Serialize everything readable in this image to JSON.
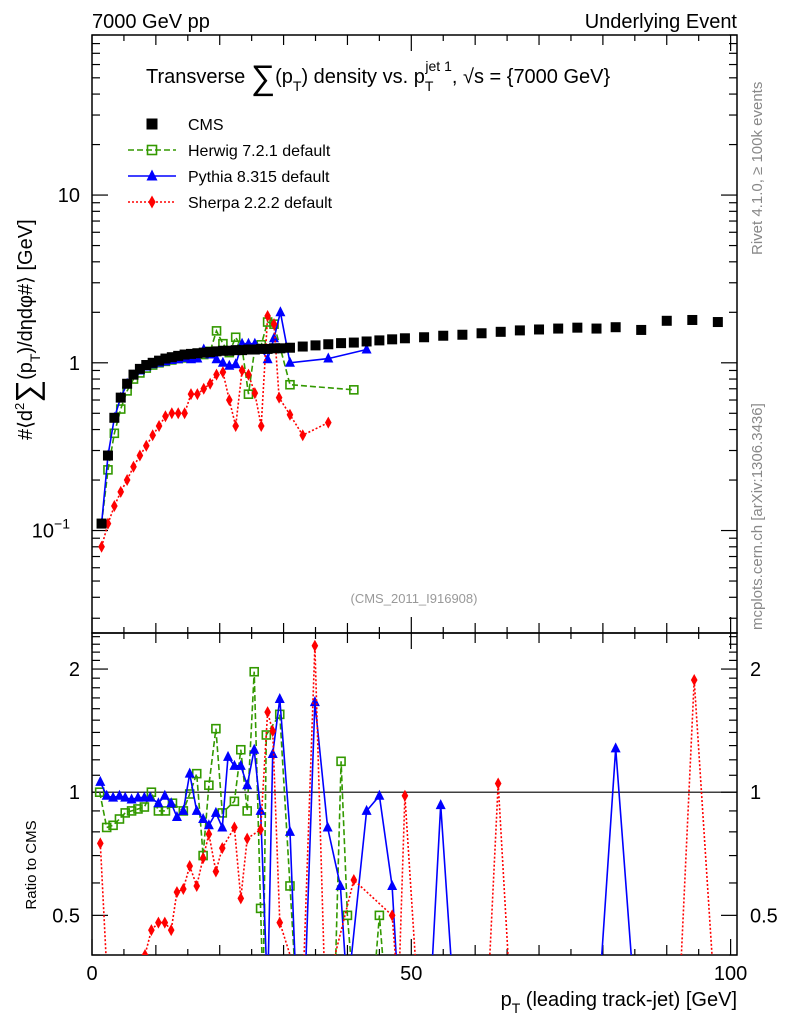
{
  "header": {
    "left": "7000 GeV pp",
    "right": "Underlying Event"
  },
  "side_labels": {
    "rivet": "Rivet 4.1.0, ≥ 100k events",
    "mcplots": "mcplots.cern.ch [arXiv:1306.3436]"
  },
  "analysis_id": "(CMS_2011_I916908)",
  "chart_data": [
    {
      "type": "line",
      "title_parts": [
        "Transverse ",
        "∑",
        "(p",
        "T",
        ") density vs. p",
        "T",
        "jet 1",
        ", √s = {7000 GeV}"
      ],
      "ylabel_parts": [
        "#⟨d",
        "2",
        "∑",
        "(p",
        "T",
        ")/dηdφ#⟩ [GeV]"
      ],
      "xscale": "linear",
      "yscale": "log",
      "xlim": [
        0,
        101
      ],
      "ylim": [
        0.0245,
        90
      ],
      "y_ticks": [
        {
          "v": 10,
          "label": "10"
        },
        {
          "v": 1,
          "label": "1"
        },
        {
          "v": 0.1,
          "label": "10",
          "sup": "−1"
        }
      ],
      "legend_position": "top-left",
      "series": [
        {
          "name": "CMS",
          "color": "#000000",
          "marker": "filled-square",
          "line": "none",
          "x": [
            1.5,
            2.5,
            3.5,
            4.5,
            5.5,
            6.5,
            7.5,
            8.5,
            9.5,
            10.5,
            11.5,
            12.5,
            13.5,
            14.5,
            15.5,
            16.5,
            17.5,
            18.5,
            19.5,
            20.5,
            21.5,
            22.5,
            23.5,
            24.5,
            25.5,
            26.5,
            27.5,
            28.5,
            29.5,
            31,
            33,
            35,
            37,
            39,
            41,
            43,
            45,
            47,
            49,
            52,
            55,
            58,
            61,
            64,
            67,
            70,
            73,
            76,
            79,
            82,
            86,
            90,
            94,
            98
          ],
          "y": [
            0.11,
            0.28,
            0.47,
            0.62,
            0.75,
            0.85,
            0.92,
            0.97,
            1.0,
            1.03,
            1.06,
            1.08,
            1.1,
            1.12,
            1.13,
            1.14,
            1.15,
            1.16,
            1.17,
            1.18,
            1.18,
            1.19,
            1.19,
            1.2,
            1.2,
            1.21,
            1.21,
            1.22,
            1.22,
            1.23,
            1.25,
            1.27,
            1.29,
            1.31,
            1.32,
            1.34,
            1.36,
            1.38,
            1.4,
            1.42,
            1.45,
            1.47,
            1.5,
            1.53,
            1.56,
            1.58,
            1.6,
            1.62,
            1.6,
            1.63,
            1.57,
            1.78,
            1.8,
            1.75
          ]
        },
        {
          "name": "Herwig 7.2.1 default",
          "color": "#339900",
          "marker": "open-square",
          "line": "dashed",
          "x": [
            1.5,
            2.5,
            3.5,
            4.5,
            5.5,
            6.5,
            7.5,
            8.5,
            9.5,
            10.5,
            11.5,
            12.5,
            13.5,
            14.5,
            15.5,
            16.5,
            17.5,
            18.5,
            19.5,
            20.5,
            21.5,
            22.5,
            23.5,
            24.5,
            25.5,
            26.5,
            27.5,
            28.5,
            31,
            41
          ],
          "y": [
            0.11,
            0.23,
            0.38,
            0.53,
            0.68,
            0.8,
            0.87,
            0.93,
            0.97,
            1.0,
            1.02,
            1.04,
            1.06,
            1.07,
            1.1,
            1.14,
            1.12,
            1.17,
            1.55,
            1.3,
            1.15,
            1.42,
            1.22,
            0.65,
            1.22,
            1.28,
            1.75,
            1.7,
            0.74,
            0.69
          ]
        },
        {
          "name": "Pythia 8.315 default",
          "color": "#0000ff",
          "marker": "filled-triangle",
          "line": "solid",
          "x": [
            1.5,
            2.5,
            3.5,
            4.5,
            5.5,
            6.5,
            7.5,
            8.5,
            9.5,
            10.5,
            11.5,
            12.5,
            13.5,
            14.5,
            15.5,
            16.5,
            17.5,
            18.5,
            19.5,
            20.5,
            21.5,
            22.5,
            23.5,
            24.5,
            25.5,
            26.5,
            27.5,
            28.5,
            29.5,
            31,
            37,
            43
          ],
          "y": [
            0.11,
            0.28,
            0.47,
            0.62,
            0.75,
            0.84,
            0.9,
            0.95,
            0.98,
            1.0,
            1.02,
            1.04,
            1.05,
            1.07,
            1.05,
            1.06,
            1.2,
            1.12,
            1.05,
            1.0,
            0.96,
            0.98,
            1.3,
            1.3,
            1.3,
            1.2,
            1.05,
            1.4,
            2.0,
            1.0,
            1.06,
            1.2
          ]
        },
        {
          "name": "Sherpa 2.2.2 default",
          "color": "#ff0000",
          "marker": "filled-diamond",
          "line": "dotted",
          "x": [
            1.5,
            2.5,
            3.5,
            4.5,
            5.5,
            6.5,
            7.5,
            8.5,
            9.5,
            10.5,
            11.5,
            12.5,
            13.5,
            14.5,
            15.5,
            16.5,
            17.5,
            18.5,
            19.5,
            20.5,
            21.5,
            22.5,
            23.5,
            24.5,
            25.5,
            26.5,
            27.5,
            28.5,
            29.3,
            31,
            33,
            37
          ],
          "y": [
            0.08,
            0.11,
            0.14,
            0.17,
            0.2,
            0.24,
            0.28,
            0.32,
            0.37,
            0.42,
            0.48,
            0.5,
            0.5,
            0.5,
            0.65,
            0.65,
            0.7,
            0.75,
            0.85,
            0.88,
            0.6,
            0.42,
            0.9,
            0.85,
            0.66,
            0.42,
            1.9,
            1.7,
            0.62,
            0.49,
            0.37,
            0.44
          ]
        }
      ]
    },
    {
      "type": "line",
      "ylabel": "Ratio to CMS",
      "xlabel_parts": [
        "p",
        "T",
        " (leading track-jet) [GeV]"
      ],
      "xscale": "linear",
      "yscale": "log",
      "xlim": [
        0,
        101
      ],
      "ylim": [
        0.4,
        2.45
      ],
      "x_ticks": [
        0,
        50,
        100
      ],
      "y_ticks": [
        {
          "v": 2,
          "label": "2"
        },
        {
          "v": 1,
          "label": "1"
        },
        {
          "v": 0.5,
          "label": "0.5"
        }
      ],
      "reference_line": 1,
      "series": [
        {
          "name": "Herwig 7.2.1 default",
          "color": "#339900",
          "marker": "open-square",
          "line": "dashed",
          "x": [
            1.2,
            2.3,
            3.3,
            4.3,
            5.2,
            6.2,
            7.2,
            8.2,
            9.3,
            10.4,
            11.5,
            12.6,
            14.3,
            15.3,
            16.4,
            17.4,
            18.3,
            19.4,
            20.4,
            22.3,
            23.3,
            24.3,
            25.4,
            26.4,
            26.8,
            27.3,
            29.4,
            31,
            32,
            38,
            39,
            40,
            41,
            44,
            45,
            46
          ],
          "y": [
            1.0,
            0.82,
            0.83,
            0.86,
            0.89,
            0.9,
            0.91,
            0.92,
            1.0,
            0.9,
            0.9,
            0.94,
            0.9,
            0.99,
            1.11,
            0.7,
            1.04,
            1.43,
            0.89,
            0.95,
            1.27,
            0.9,
            1.97,
            0.52,
            0,
            1.38,
            1.55,
            0.59,
            0,
            0,
            1.19,
            0.5,
            0,
            0,
            0.5,
            0
          ]
        },
        {
          "name": "Pythia 8.315 default",
          "color": "#0000ff",
          "marker": "filled-triangle",
          "line": "solid",
          "x": [
            1.3,
            2.3,
            3.3,
            4.3,
            5.2,
            6.2,
            7.2,
            8.2,
            9.1,
            10.4,
            11.4,
            12.4,
            13.3,
            14.3,
            15.3,
            16.4,
            17.4,
            18.3,
            19.4,
            20.4,
            21.3,
            22.3,
            23.3,
            24.3,
            25.4,
            26.4,
            27.5,
            28.3,
            29.4,
            31,
            32,
            33.3,
            34.9,
            36.9,
            38.9,
            40,
            43,
            45,
            47,
            48,
            53,
            54.6,
            56.6,
            79.4,
            82,
            84.9
          ],
          "y": [
            1.06,
            0.98,
            0.97,
            0.98,
            0.97,
            0.96,
            0.97,
            0.97,
            0.97,
            0.94,
            0.98,
            0.94,
            0.87,
            0.9,
            1.11,
            0.9,
            0.86,
            0.83,
            0.89,
            0.82,
            1.22,
            1.16,
            1.16,
            1.04,
            1.27,
            0.9,
            0,
            1.24,
            1.69,
            0.8,
            0,
            0,
            1.66,
            0.82,
            0.59,
            0,
            0.9,
            0.98,
            0.59,
            0,
            0,
            0.93,
            0,
            0,
            1.28,
            0
          ]
        },
        {
          "name": "Sherpa 2.2.2 default",
          "color": "#ff0000",
          "marker": "filled-diamond",
          "line": "dotted",
          "x": [
            1.3,
            2.5,
            8.3,
            9.3,
            10.4,
            11.4,
            12.4,
            13.3,
            14.3,
            15.3,
            16.4,
            17.4,
            18.3,
            19.4,
            20.4,
            22.3,
            23.3,
            24.3,
            26.4,
            27.5,
            28.3,
            29.4,
            33,
            34.9,
            36.5,
            41,
            47,
            48,
            49,
            51,
            62,
            63.6,
            65.5,
            92,
            94.3,
            97.5
          ],
          "y": [
            0.75,
            0,
            0.4,
            0.46,
            0.48,
            0.48,
            0.46,
            0.57,
            0.58,
            0.66,
            0.59,
            0.69,
            0.79,
            0.64,
            0.73,
            0.82,
            0.55,
            0.77,
            0.81,
            1.57,
            1.41,
            0.48,
            0,
            2.28,
            0,
            0.61,
            0.5,
            0,
            0.98,
            0,
            0,
            1.05,
            0,
            0,
            1.88,
            0
          ]
        }
      ]
    }
  ]
}
